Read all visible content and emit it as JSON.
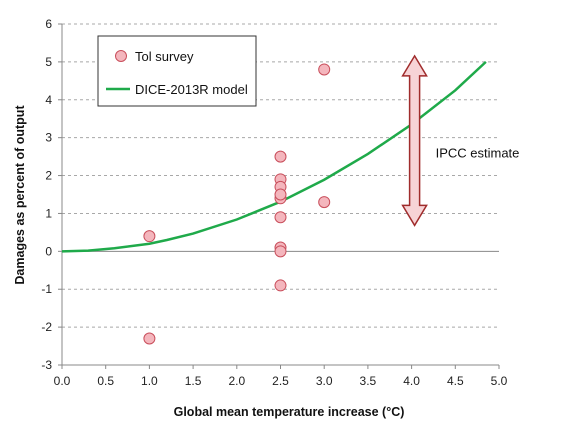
{
  "chart_data": {
    "type": "scatter",
    "title": "",
    "xlabel": "Global mean temperature increase (°C)",
    "ylabel": "Damages as percent of output",
    "xlim": [
      0,
      5
    ],
    "ylim": [
      -3,
      6
    ],
    "x_ticks": [
      "0.0",
      "0.5",
      "1.0",
      "1.5",
      "2.0",
      "2.5",
      "3.0",
      "3.5",
      "4.0",
      "4.5",
      "5.0"
    ],
    "y_ticks": [
      "-3",
      "-2",
      "-1",
      "0",
      "1",
      "2",
      "3",
      "4",
      "5",
      "6"
    ],
    "grid": "horizontal dashed",
    "legend_position": "top-left",
    "series": [
      {
        "name": "Tol survey",
        "kind": "scatter",
        "color": "#f4b6bd",
        "points": [
          {
            "x": 1.0,
            "y": 0.4
          },
          {
            "x": 1.0,
            "y": -2.3
          },
          {
            "x": 2.5,
            "y": 2.5
          },
          {
            "x": 2.5,
            "y": 1.9
          },
          {
            "x": 2.5,
            "y": 1.7
          },
          {
            "x": 2.5,
            "y": 1.4
          },
          {
            "x": 2.5,
            "y": 1.5
          },
          {
            "x": 2.5,
            "y": 0.9
          },
          {
            "x": 2.5,
            "y": 0.1
          },
          {
            "x": 2.5,
            "y": 0.0
          },
          {
            "x": 2.5,
            "y": -0.9
          },
          {
            "x": 3.0,
            "y": 4.8
          },
          {
            "x": 3.0,
            "y": 1.3
          }
        ]
      },
      {
        "name": "DICE-2013R model",
        "kind": "line",
        "color": "#1faa4a",
        "points": [
          {
            "x": 0.0,
            "y": 0.0
          },
          {
            "x": 0.3,
            "y": 0.02
          },
          {
            "x": 0.6,
            "y": 0.08
          },
          {
            "x": 1.0,
            "y": 0.2
          },
          {
            "x": 1.2,
            "y": 0.3
          },
          {
            "x": 1.5,
            "y": 0.47
          },
          {
            "x": 2.0,
            "y": 0.84
          },
          {
            "x": 2.5,
            "y": 1.31
          },
          {
            "x": 3.0,
            "y": 1.89
          },
          {
            "x": 3.5,
            "y": 2.57
          },
          {
            "x": 4.0,
            "y": 3.35
          },
          {
            "x": 4.5,
            "y": 4.25
          },
          {
            "x": 4.85,
            "y": 5.0
          }
        ]
      }
    ],
    "annotations": [
      {
        "text": "IPCC estimate",
        "kind": "double-arrow",
        "x": 4.0,
        "y_from": 1.0,
        "y_to": 5.0,
        "fill": "#f7d3d6",
        "stroke": "#a02c2c"
      }
    ]
  }
}
